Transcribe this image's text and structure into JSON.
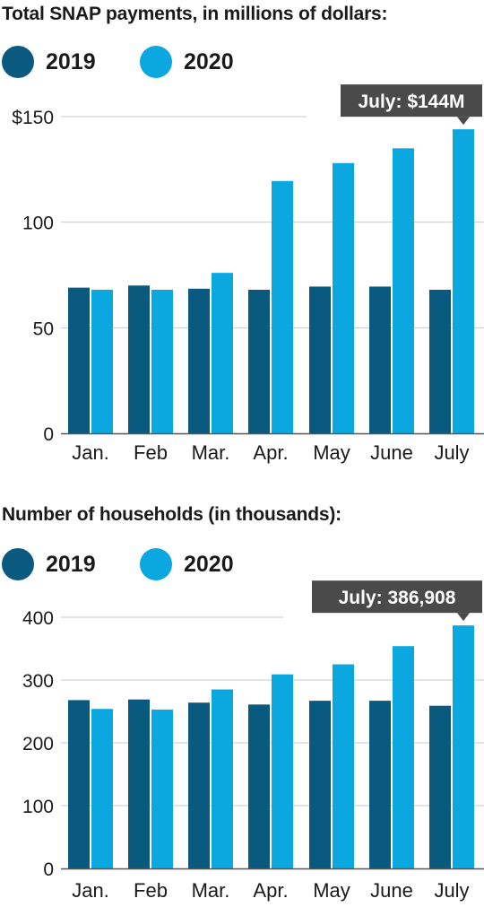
{
  "colors": {
    "series_2019": "#0a5a80",
    "series_2020": "#0ba8e0",
    "callout_bg": "#4a4a4a",
    "grid": "#c8c8c8",
    "axis": "#555555"
  },
  "chart_data": [
    {
      "type": "bar",
      "title": "Total SNAP payments, in millions of dollars:",
      "categories": [
        "Jan.",
        "Feb",
        "Mar.",
        "Apr.",
        "May",
        "June",
        "July"
      ],
      "series": [
        {
          "name": "2019",
          "values": [
            69,
            70,
            68.5,
            68,
            69.5,
            69.5,
            68
          ]
        },
        {
          "name": "2020",
          "values": [
            68,
            68,
            76,
            119.5,
            128,
            135,
            144
          ]
        }
      ],
      "ylim": [
        0,
        150
      ],
      "yticks": [
        0,
        50,
        100,
        150
      ],
      "ytick_labels": [
        "0",
        "50",
        "100",
        "$150"
      ],
      "grid": true,
      "legend": "top-left",
      "callout": {
        "text": "July: $144M",
        "category_index": 6,
        "series_index": 1
      }
    },
    {
      "type": "bar",
      "title": "Number of households (in thousands):",
      "categories": [
        "Jan.",
        "Feb",
        "Mar.",
        "Apr.",
        "May",
        "June",
        "July"
      ],
      "series": [
        {
          "name": "2019",
          "values": [
            268,
            269,
            264,
            261,
            267,
            267,
            259
          ]
        },
        {
          "name": "2020",
          "values": [
            254,
            253,
            285,
            309,
            325,
            354,
            386.908
          ]
        }
      ],
      "ylim": [
        0,
        400
      ],
      "yticks": [
        0,
        100,
        200,
        300,
        400
      ],
      "ytick_labels": [
        "0",
        "100",
        "200",
        "300",
        "400"
      ],
      "grid": true,
      "legend": "top-left",
      "callout": {
        "text": "July: 386,908",
        "category_index": 6,
        "series_index": 1
      }
    }
  ]
}
